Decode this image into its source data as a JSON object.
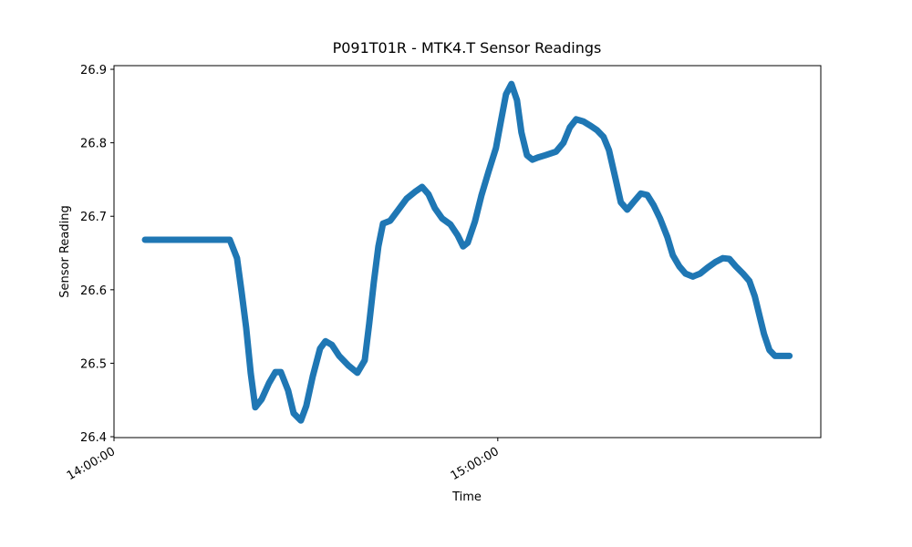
{
  "chart_data": {
    "type": "line",
    "title": "P091T01R - MTK4.T Sensor Readings",
    "xlabel": "Time",
    "ylabel": "Sensor Reading",
    "x": [
      "14:04:51",
      "14:18:06",
      "14:19:14",
      "14:19:57",
      "14:20:40",
      "14:21:23",
      "14:22:05",
      "14:23:05",
      "14:24:14",
      "14:25:14",
      "14:26:05",
      "14:27:13",
      "14:28:05",
      "14:29:13",
      "14:30:04",
      "14:31:04",
      "14:32:13",
      "14:33:04",
      "14:34:04",
      "14:35:12",
      "14:36:38",
      "14:38:03",
      "14:39:12",
      "14:39:54",
      "14:40:37",
      "14:41:20",
      "14:42:03",
      "14:43:11",
      "14:44:28",
      "14:45:45",
      "14:47:10",
      "14:48:10",
      "14:49:10",
      "14:50:10",
      "14:51:18",
      "14:52:35",
      "14:53:44",
      "14:54:35",
      "14:55:18",
      "14:56:26",
      "14:57:26",
      "14:58:34",
      "14:59:43",
      "15:00:34",
      "15:01:17",
      "15:02:08",
      "15:03:00",
      "15:03:42",
      "15:04:34",
      "15:05:25",
      "15:06:16",
      "15:07:25",
      "15:09:07",
      "15:10:16",
      "15:11:16",
      "15:12:15",
      "15:13:24",
      "15:14:32",
      "15:15:32",
      "15:16:32",
      "15:17:23",
      "15:18:23",
      "15:19:14",
      "15:20:14",
      "15:21:23",
      "15:22:22",
      "15:23:22",
      "15:24:22",
      "15:25:22",
      "15:26:30",
      "15:27:22",
      "15:28:22",
      "15:29:21",
      "15:30:30",
      "15:31:38",
      "15:32:47",
      "15:34:04",
      "15:35:12",
      "15:36:12",
      "15:37:12",
      "15:38:20",
      "15:39:20",
      "15:40:11",
      "15:41:03",
      "15:41:37",
      "15:42:28",
      "15:43:20",
      "15:45:36"
    ],
    "series": [
      {
        "name": "MTK4.T",
        "color": "#1f77b4",
        "values": [
          26.668,
          26.668,
          26.643,
          26.597,
          26.548,
          26.486,
          26.44,
          26.451,
          26.473,
          26.488,
          26.488,
          26.463,
          26.432,
          26.422,
          26.442,
          26.482,
          26.52,
          26.53,
          26.525,
          26.51,
          26.497,
          26.487,
          26.504,
          26.554,
          26.61,
          26.659,
          26.69,
          26.694,
          26.709,
          26.724,
          26.734,
          26.74,
          26.73,
          26.711,
          26.697,
          26.689,
          26.674,
          26.659,
          26.664,
          26.693,
          26.728,
          26.761,
          26.793,
          26.833,
          26.866,
          26.88,
          26.858,
          26.814,
          26.783,
          26.777,
          26.78,
          26.783,
          26.788,
          26.8,
          26.821,
          26.832,
          26.829,
          26.823,
          26.817,
          26.808,
          26.79,
          26.752,
          26.719,
          26.709,
          26.721,
          26.731,
          26.729,
          26.715,
          26.697,
          26.672,
          26.647,
          26.632,
          26.622,
          26.618,
          26.622,
          26.63,
          26.638,
          26.643,
          26.642,
          26.632,
          26.622,
          26.612,
          26.591,
          26.56,
          26.54,
          26.518,
          26.51,
          26.51
        ]
      }
    ],
    "xlim": [
      "14:00:00",
      "15:50:30"
    ],
    "xticks": [
      "14:00:00",
      "15:00:00"
    ],
    "ylim": [
      26.3988,
      26.905
    ],
    "yticks": [
      26.4,
      26.5,
      26.6,
      26.7,
      26.8,
      26.9
    ]
  }
}
